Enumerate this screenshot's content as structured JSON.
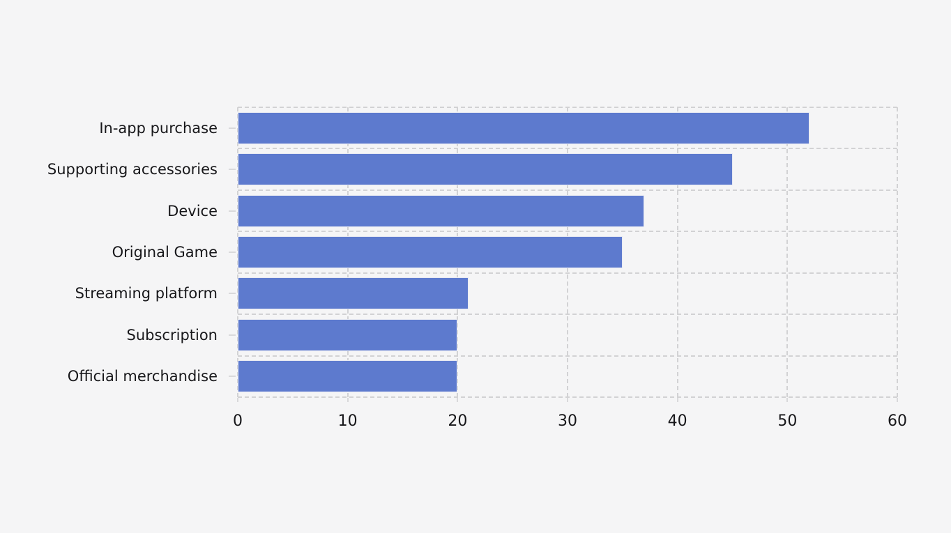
{
  "chart_data": {
    "type": "bar",
    "orientation": "horizontal",
    "title": "",
    "xlabel": "",
    "ylabel": "",
    "categories": [
      "In-app purchase",
      "Supporting accessories",
      "Device",
      "Original Game",
      "Streaming platform",
      "Subscription",
      "Official merchandise"
    ],
    "values": [
      52,
      45,
      37,
      35,
      21,
      20,
      20
    ],
    "xlim": [
      0,
      60
    ],
    "x_ticks": [
      "0",
      "10",
      "20",
      "30",
      "40",
      "50",
      "60"
    ],
    "x_tick_values": [
      0,
      10,
      20,
      30,
      40,
      50,
      60
    ],
    "grid": "dashed",
    "legend": "none"
  },
  "colors": {
    "background": "#f5f5f6",
    "bar": "#5d7ace",
    "gridline": "#d2d2d4",
    "tick": "#d9d9db",
    "text": "#17171a"
  }
}
